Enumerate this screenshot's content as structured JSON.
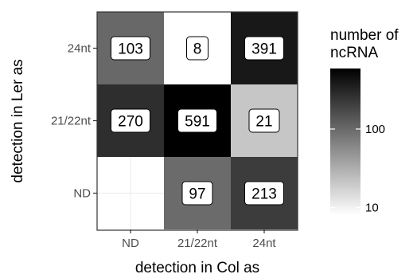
{
  "chart_data": {
    "type": "heatmap",
    "title": "",
    "xlabel": "detection in Col as",
    "ylabel": "detection in Ler as",
    "x_categories": [
      "ND",
      "21/22nt",
      "24nt"
    ],
    "y_categories": [
      "ND",
      "21/22nt",
      "24nt"
    ],
    "cells": [
      {
        "x": "ND",
        "y": "24nt",
        "value": 103
      },
      {
        "x": "21/22nt",
        "y": "24nt",
        "value": 8
      },
      {
        "x": "24nt",
        "y": "24nt",
        "value": 391
      },
      {
        "x": "ND",
        "y": "21/22nt",
        "value": 270
      },
      {
        "x": "21/22nt",
        "y": "21/22nt",
        "value": 591
      },
      {
        "x": "24nt",
        "y": "21/22nt",
        "value": 21
      },
      {
        "x": "21/22nt",
        "y": "ND",
        "value": 97
      },
      {
        "x": "24nt",
        "y": "ND",
        "value": 213
      }
    ],
    "color_scale": {
      "title": "number of\nncRNA",
      "transform": "log10",
      "low_color": "#ffffff",
      "high_color": "#000000",
      "domain": [
        8,
        591
      ],
      "ticks": [
        10,
        100
      ]
    },
    "grid": true,
    "legend_position": "right"
  }
}
